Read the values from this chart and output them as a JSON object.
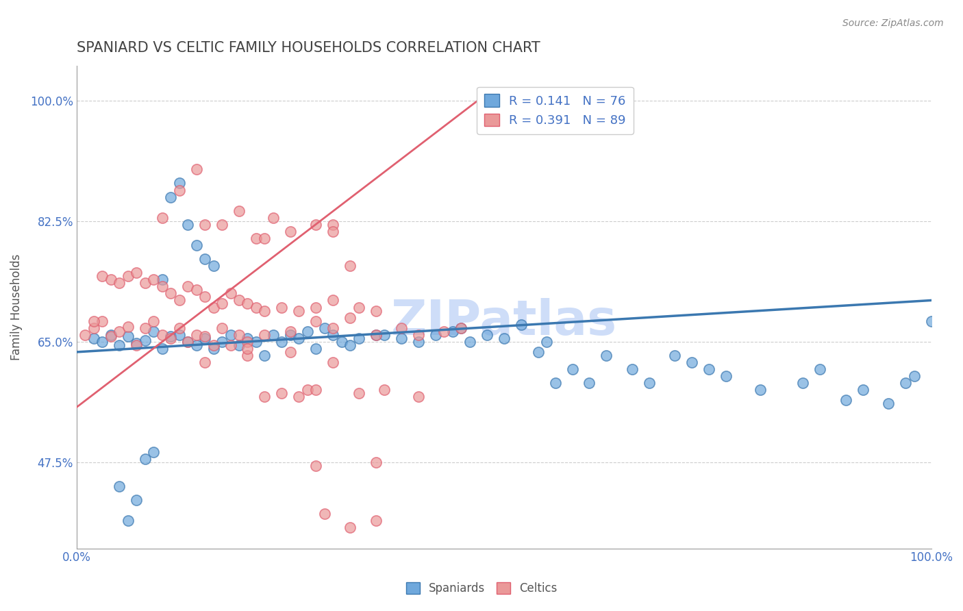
{
  "title": "SPANIARD VS CELTIC FAMILY HOUSEHOLDS CORRELATION CHART",
  "source": "Source: ZipAtlas.com",
  "ylabel": "Family Households",
  "xlabel": "",
  "xlim": [
    0.0,
    1.0
  ],
  "ylim": [
    0.35,
    1.05
  ],
  "legend_blue_r": "R = 0.141",
  "legend_blue_n": "N = 76",
  "legend_pink_r": "R = 0.391",
  "legend_pink_n": "N = 89",
  "watermark": "ZIPatlas",
  "blue_color": "#6fa8dc",
  "pink_color": "#ea9999",
  "blue_line_color": "#3b78b0",
  "pink_line_color": "#e06070",
  "title_color": "#434343",
  "axis_label_color": "#4472c4",
  "watermark_color": "#c9daf8",
  "spaniards_x": [
    0.02,
    0.03,
    0.04,
    0.05,
    0.06,
    0.07,
    0.08,
    0.09,
    0.1,
    0.11,
    0.12,
    0.13,
    0.14,
    0.15,
    0.16,
    0.17,
    0.18,
    0.19,
    0.2,
    0.21,
    0.22,
    0.23,
    0.24,
    0.25,
    0.26,
    0.27,
    0.28,
    0.29,
    0.3,
    0.31,
    0.32,
    0.33,
    0.35,
    0.36,
    0.38,
    0.4,
    0.42,
    0.44,
    0.45,
    0.46,
    0.48,
    0.5,
    0.52,
    0.54,
    0.55,
    0.56,
    0.58,
    0.6,
    0.62,
    0.65,
    0.67,
    0.7,
    0.72,
    0.74,
    0.76,
    0.8,
    0.85,
    0.87,
    0.9,
    0.92,
    0.95,
    0.97,
    0.98,
    1.0,
    0.1,
    0.11,
    0.12,
    0.13,
    0.14,
    0.15,
    0.16,
    0.05,
    0.06,
    0.07,
    0.08,
    0.09
  ],
  "spaniards_y": [
    0.655,
    0.65,
    0.66,
    0.645,
    0.658,
    0.648,
    0.652,
    0.665,
    0.64,
    0.658,
    0.66,
    0.65,
    0.645,
    0.655,
    0.64,
    0.65,
    0.66,
    0.645,
    0.655,
    0.65,
    0.63,
    0.66,
    0.65,
    0.66,
    0.655,
    0.665,
    0.64,
    0.67,
    0.66,
    0.65,
    0.645,
    0.655,
    0.66,
    0.66,
    0.655,
    0.65,
    0.66,
    0.665,
    0.67,
    0.65,
    0.66,
    0.655,
    0.675,
    0.635,
    0.65,
    0.59,
    0.61,
    0.59,
    0.63,
    0.61,
    0.59,
    0.63,
    0.62,
    0.61,
    0.6,
    0.58,
    0.59,
    0.61,
    0.565,
    0.58,
    0.56,
    0.59,
    0.6,
    0.68,
    0.74,
    0.86,
    0.88,
    0.82,
    0.79,
    0.77,
    0.76,
    0.44,
    0.39,
    0.42,
    0.48,
    0.49
  ],
  "celtics_x": [
    0.01,
    0.02,
    0.03,
    0.04,
    0.05,
    0.06,
    0.07,
    0.08,
    0.09,
    0.1,
    0.11,
    0.12,
    0.13,
    0.14,
    0.15,
    0.16,
    0.17,
    0.18,
    0.19,
    0.2,
    0.22,
    0.25,
    0.28,
    0.3,
    0.32,
    0.35,
    0.38,
    0.4,
    0.43,
    0.45,
    0.3,
    0.32,
    0.1,
    0.12,
    0.14,
    0.15,
    0.17,
    0.19,
    0.21,
    0.22,
    0.23,
    0.25,
    0.28,
    0.3,
    0.02,
    0.03,
    0.04,
    0.05,
    0.06,
    0.07,
    0.08,
    0.09,
    0.1,
    0.11,
    0.12,
    0.13,
    0.14,
    0.15,
    0.16,
    0.17,
    0.18,
    0.19,
    0.2,
    0.21,
    0.22,
    0.24,
    0.26,
    0.28,
    0.3,
    0.33,
    0.35,
    0.27,
    0.22,
    0.24,
    0.26,
    0.28,
    0.33,
    0.36,
    0.4,
    0.28,
    0.35,
    0.15,
    0.2,
    0.2,
    0.25,
    0.3,
    0.29,
    0.32,
    0.35
  ],
  "celtics_y": [
    0.66,
    0.67,
    0.68,
    0.658,
    0.665,
    0.672,
    0.645,
    0.67,
    0.68,
    0.66,
    0.655,
    0.67,
    0.65,
    0.66,
    0.658,
    0.645,
    0.67,
    0.645,
    0.66,
    0.65,
    0.66,
    0.665,
    0.68,
    0.67,
    0.685,
    0.66,
    0.67,
    0.66,
    0.665,
    0.67,
    0.82,
    0.76,
    0.83,
    0.87,
    0.9,
    0.82,
    0.82,
    0.84,
    0.8,
    0.8,
    0.83,
    0.81,
    0.82,
    0.81,
    0.68,
    0.745,
    0.74,
    0.735,
    0.745,
    0.75,
    0.735,
    0.74,
    0.73,
    0.72,
    0.71,
    0.73,
    0.725,
    0.715,
    0.7,
    0.705,
    0.72,
    0.71,
    0.705,
    0.7,
    0.695,
    0.7,
    0.695,
    0.7,
    0.71,
    0.7,
    0.695,
    0.58,
    0.57,
    0.575,
    0.57,
    0.58,
    0.575,
    0.58,
    0.57,
    0.47,
    0.475,
    0.62,
    0.63,
    0.64,
    0.635,
    0.62,
    0.4,
    0.38,
    0.39
  ],
  "blue_trend_x": [
    0.0,
    1.0
  ],
  "blue_trend_y": [
    0.635,
    0.71
  ],
  "pink_trend_x": [
    0.0,
    0.48
  ],
  "pink_trend_y": [
    0.555,
    1.01
  ]
}
